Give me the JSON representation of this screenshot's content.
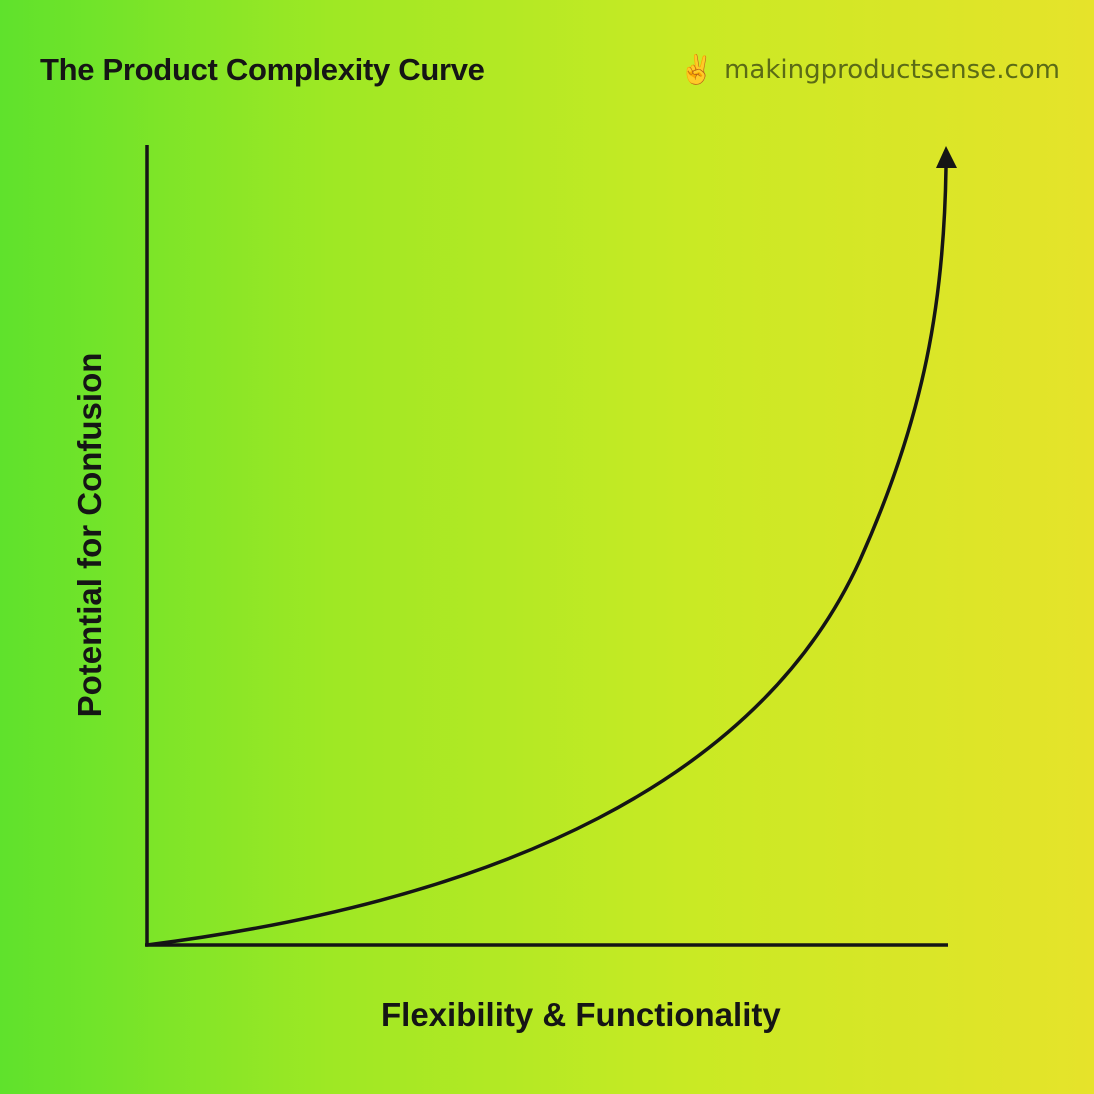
{
  "title": "The Product Complexity Curve",
  "brand": {
    "icon": "victory-hand-emoji",
    "icon_glyph": "✌️",
    "text": "makingproductsense.com"
  },
  "axes": {
    "x_label": "Flexibility & Functionality",
    "y_label": "Potential for Confusion"
  },
  "curve": {
    "shape": "exponential",
    "arrow": "up"
  },
  "colors": {
    "gradient_start": "#5fe22c",
    "gradient_end": "#e6e32a",
    "ink": "#151515",
    "brand_text": "#5b6b16"
  }
}
